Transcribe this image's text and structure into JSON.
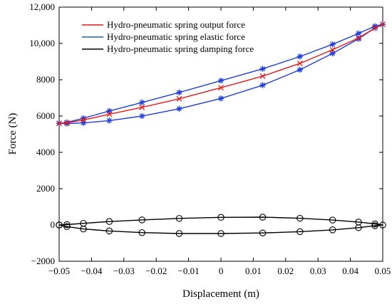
{
  "chart_data": {
    "type": "line",
    "xlabel": "Displacement (m)",
    "ylabel": "Force (N)",
    "xlim": [
      -0.05,
      0.05
    ],
    "ylim": [
      -2000,
      12000
    ],
    "x_ticks": [
      -0.05,
      -0.04,
      -0.03,
      -0.02,
      -0.01,
      0,
      0.01,
      0.02,
      0.03,
      0.04,
      0.05
    ],
    "x_tick_labels": [
      "−0.05",
      "−0.04",
      "−0.03",
      "−0.02",
      "−0.01",
      "0",
      "0.01",
      "0.02",
      "0.03",
      "0.04",
      "0.05"
    ],
    "y_ticks": [
      -2000,
      0,
      2000,
      4000,
      6000,
      8000,
      10000,
      12000
    ],
    "y_tick_labels": [
      "−2000",
      "0",
      "2000",
      "4000",
      "6000",
      "8000",
      "10,000",
      "12,000"
    ],
    "grid": false,
    "legend_position": "top-left",
    "legend": [
      {
        "label": "Hydro-pneumatic spring output force",
        "color": "#e31a1c"
      },
      {
        "label": "Hydro-pneumatic spring elastic force",
        "color": "#1f5fbf"
      },
      {
        "label": "Hydro-pneumatic spring damping force",
        "color": "#000000"
      }
    ],
    "series": [
      {
        "name": "Hydro-pneumatic spring output force",
        "color": "#e31a1c",
        "marker": "x",
        "x": [
          -0.05,
          -0.0476,
          -0.0425,
          -0.0345,
          -0.0244,
          -0.0129,
          0,
          0.0129,
          0.0244,
          0.0345,
          0.0425,
          0.0476,
          0.05
        ],
        "y": [
          5600,
          5630,
          5780,
          6100,
          6480,
          6950,
          7560,
          8200,
          8900,
          9650,
          10300,
          10850,
          11050
        ]
      },
      {
        "name": "Hydro-pneumatic spring elastic force",
        "color": "#1f3fd8",
        "marker": "*",
        "x": [
          -0.05,
          -0.0476,
          -0.0425,
          -0.0345,
          -0.0244,
          -0.0129,
          0,
          0.0129,
          0.0244,
          0.0345,
          0.0425,
          0.0476,
          0.05,
          0.0476,
          0.0425,
          0.0345,
          0.0244,
          0.0129,
          0,
          -0.0129,
          -0.0244,
          -0.0345,
          -0.0425,
          -0.0476,
          -0.05
        ],
        "y": [
          5600,
          5650,
          5880,
          6280,
          6750,
          7300,
          7950,
          8600,
          9280,
          9950,
          10550,
          10950,
          11050,
          10850,
          10250,
          9450,
          8550,
          7700,
          6970,
          6400,
          6000,
          5750,
          5620,
          5590,
          5600
        ]
      },
      {
        "name": "Hydro-pneumatic spring damping force",
        "color": "#000000",
        "marker": "o",
        "x": [
          -0.05,
          -0.0476,
          -0.0425,
          -0.0345,
          -0.0244,
          -0.0129,
          0,
          0.0129,
          0.0244,
          0.0345,
          0.0425,
          0.0476,
          0.05,
          0.0476,
          0.0425,
          0.0345,
          0.0244,
          0.0129,
          0,
          -0.0129,
          -0.0244,
          -0.0345,
          -0.0425,
          -0.0476,
          -0.05
        ],
        "y": [
          0,
          20,
          90,
          190,
          280,
          360,
          420,
          430,
          370,
          270,
          160,
          60,
          0,
          -40,
          -150,
          -270,
          -370,
          -440,
          -470,
          -470,
          -420,
          -330,
          -220,
          -90,
          0
        ]
      }
    ]
  }
}
